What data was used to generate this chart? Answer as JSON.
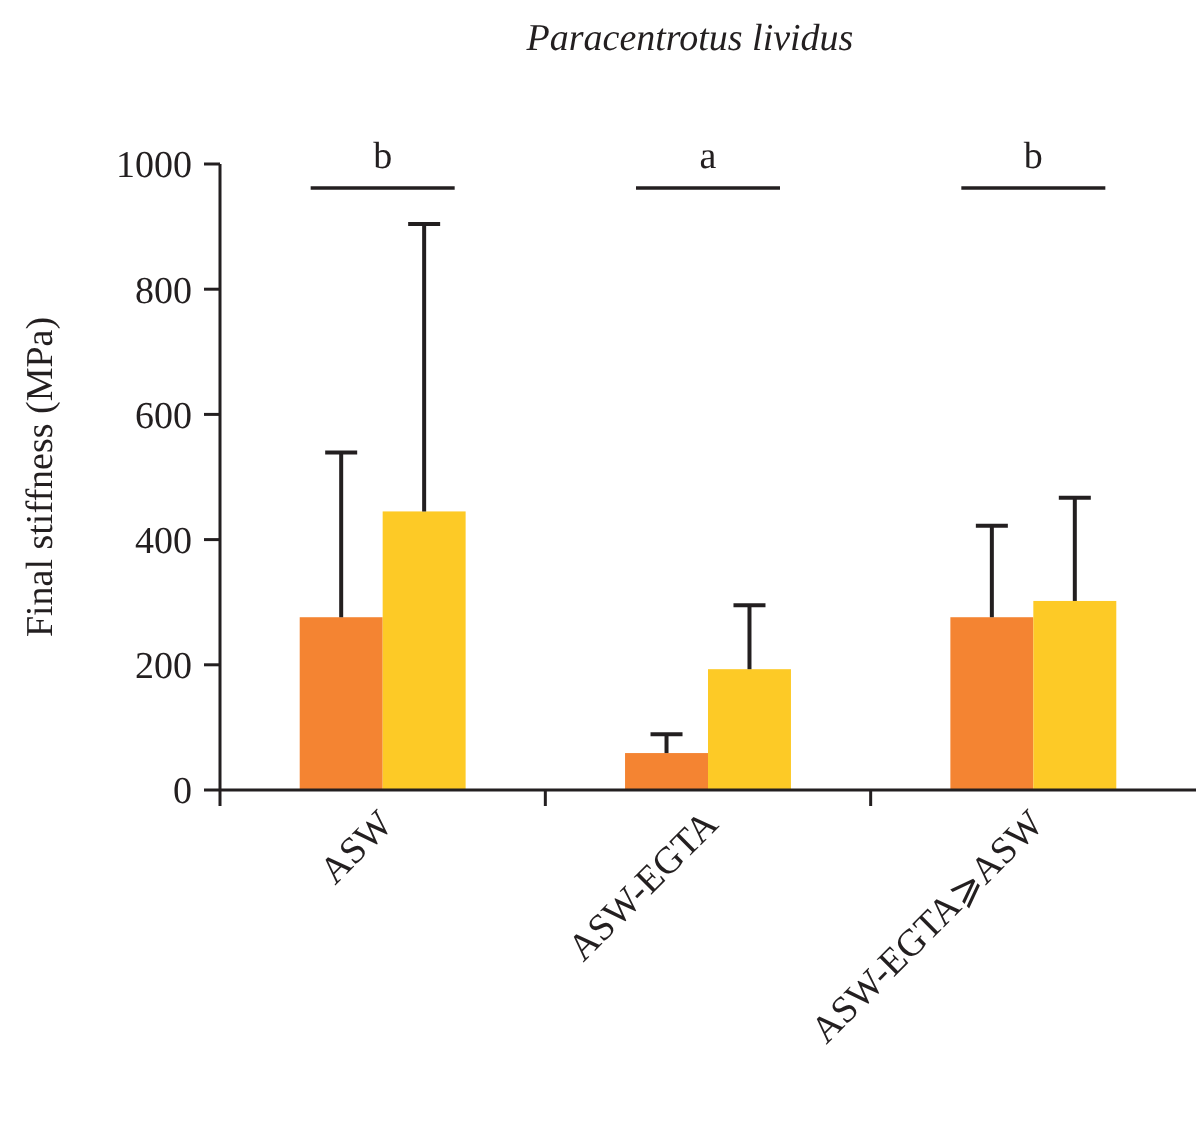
{
  "chart_data": {
    "type": "bar",
    "title": "Paracentrotus lividus",
    "ylabel": "Final stiffness (MPa)",
    "categories": [
      "ASW",
      "ASW-EGTA",
      "ASW-EGTA⩾ASW"
    ],
    "series": [
      {
        "color": "#f48432",
        "values": [
          276,
          59,
          276
        ],
        "errors": [
          [
            276,
            539
          ],
          [
            59,
            89
          ],
          [
            276,
            422
          ]
        ]
      },
      {
        "color": "#fdca26",
        "values": [
          445,
          193,
          302
        ],
        "errors": [
          [
            445,
            904
          ],
          [
            193,
            295
          ],
          [
            302,
            467
          ]
        ]
      }
    ],
    "ylim": [
      0,
      1000
    ],
    "yticks": [
      0,
      200,
      400,
      600,
      800,
      1000
    ],
    "grid": false,
    "annotations": [
      "b",
      "a",
      "b"
    ]
  }
}
